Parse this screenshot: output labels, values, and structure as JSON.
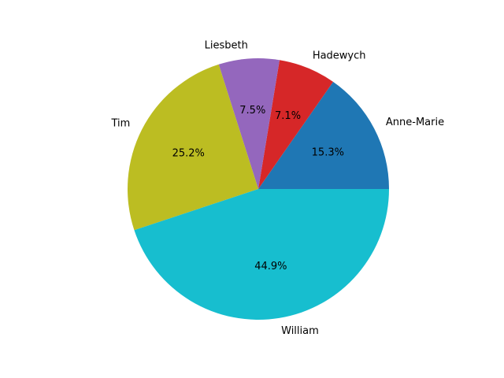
{
  "chart_data": {
    "type": "pie",
    "title": "",
    "labels": [
      "Anne-Marie",
      "Hadewych",
      "Liesbeth",
      "Tim",
      "William"
    ],
    "values": [
      15.3,
      7.1,
      7.5,
      25.2,
      44.9
    ],
    "percent_labels": [
      "15.3%",
      "7.1%",
      "7.5%",
      "25.2%",
      "44.9%"
    ],
    "colors": [
      "#1f77b4",
      "#d62728",
      "#9467bd",
      "#bcbd22",
      "#17becf"
    ],
    "start_angle_deg": 0,
    "direction": "counterclockwise",
    "legend": "none"
  }
}
